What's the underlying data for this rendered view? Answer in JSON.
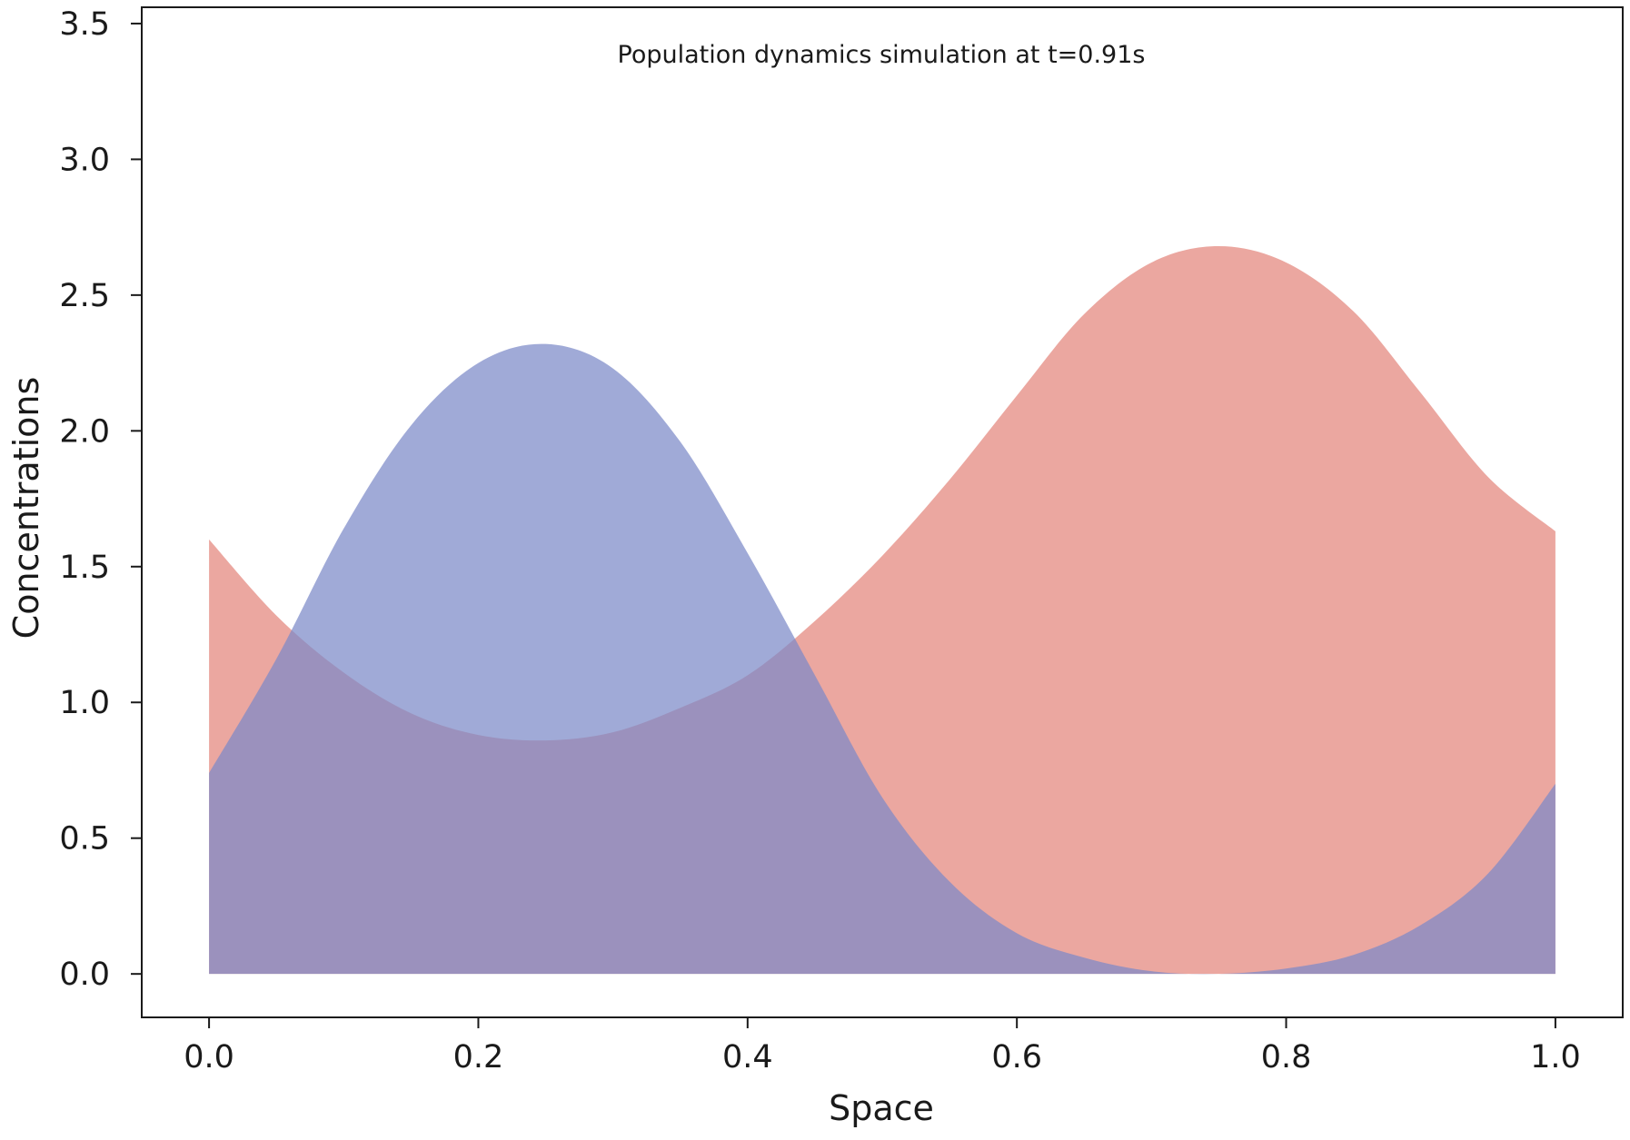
{
  "chart_data": {
    "type": "area",
    "title": "Population dynamics simulation at t=0.91s",
    "xlabel": "Space",
    "ylabel": "Concentrations",
    "xlim": [
      -0.05,
      1.05
    ],
    "ylim": [
      -0.16,
      3.56
    ],
    "grid": false,
    "legend": "none",
    "x_ticks": [
      0.0,
      0.2,
      0.4,
      0.6,
      0.8,
      1.0
    ],
    "x_tick_labels": [
      "0.0",
      "0.2",
      "0.4",
      "0.6",
      "0.8",
      "1.0"
    ],
    "y_ticks": [
      0.0,
      0.5,
      1.0,
      1.5,
      2.0,
      2.5,
      3.0,
      3.5
    ],
    "y_tick_labels": [
      "0.0",
      "0.5",
      "1.0",
      "1.5",
      "2.0",
      "2.5",
      "3.0",
      "3.5"
    ],
    "x": [
      0.0,
      0.05,
      0.1,
      0.15,
      0.2,
      0.25,
      0.3,
      0.35,
      0.4,
      0.45,
      0.5,
      0.55,
      0.6,
      0.65,
      0.7,
      0.75,
      0.8,
      0.85,
      0.9,
      0.95,
      1.0
    ],
    "series": [
      {
        "color": "#e48a80",
        "opacity": 0.75,
        "values": [
          1.6,
          1.32,
          1.11,
          0.96,
          0.88,
          0.86,
          0.89,
          0.98,
          1.1,
          1.3,
          1.54,
          1.82,
          2.13,
          2.43,
          2.62,
          2.68,
          2.62,
          2.44,
          2.14,
          1.83,
          1.63
        ]
      },
      {
        "color": "#7b89c8",
        "opacity": 0.72,
        "values": [
          0.74,
          1.16,
          1.64,
          2.02,
          2.25,
          2.32,
          2.23,
          1.96,
          1.55,
          1.1,
          0.65,
          0.34,
          0.15,
          0.06,
          0.01,
          0.0,
          0.02,
          0.07,
          0.18,
          0.37,
          0.7
        ]
      }
    ]
  }
}
